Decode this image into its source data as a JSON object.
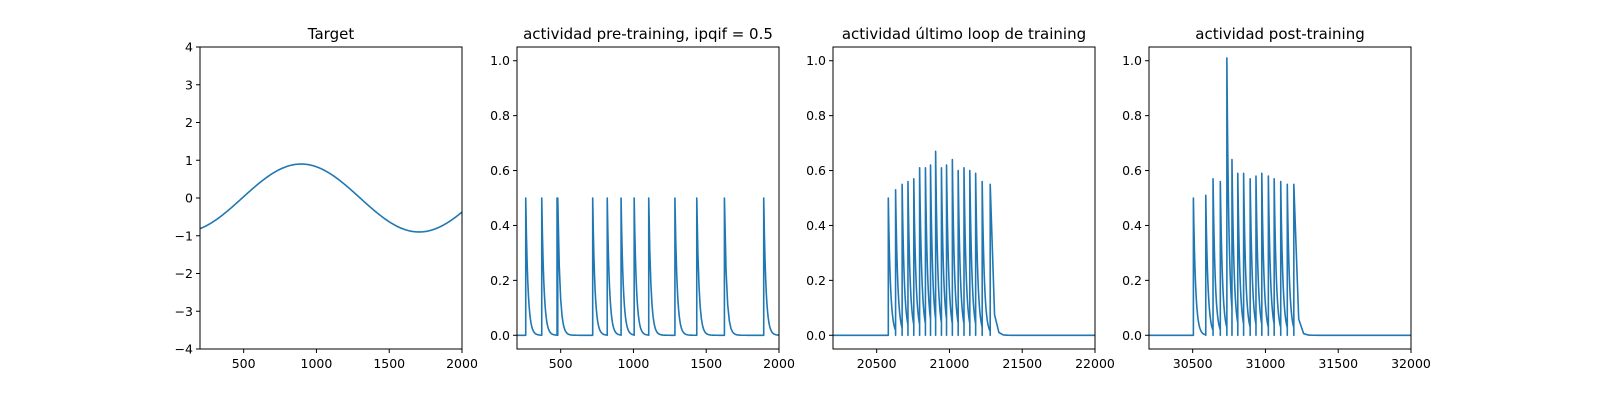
{
  "figure": {
    "background": "#ffffff",
    "line_color": "#1f77b4"
  },
  "chart_data": [
    {
      "type": "line",
      "title": "Target",
      "xlabel": "",
      "ylabel": "",
      "xlim": [
        200,
        2000
      ],
      "ylim": [
        -4,
        4
      ],
      "xticks": [
        500,
        1000,
        1500,
        2000
      ],
      "yticks": [
        -4,
        -3,
        -2,
        -1,
        0,
        1,
        2,
        3,
        4
      ],
      "grid": false,
      "function": {
        "kind": "sine",
        "amplitude": 0.9,
        "period": 1620,
        "peak_x": 895,
        "x_start": 200,
        "x_end": 2000
      }
    },
    {
      "type": "line",
      "title": "actividad pre-training, ipqif = 0.5",
      "xlabel": "",
      "ylabel": "",
      "xlim": [
        200,
        2000
      ],
      "ylim": [
        -0.05,
        1.05
      ],
      "xticks": [
        500,
        1000,
        1500,
        2000
      ],
      "yticks": [
        0.0,
        0.2,
        0.4,
        0.6,
        0.8,
        1.0
      ],
      "grid": false,
      "spikes": {
        "x_start": 200,
        "x_end": 2000,
        "baseline": 0.0,
        "decay_tau": 15,
        "events": [
          {
            "x": 260,
            "peak": 0.5
          },
          {
            "x": 370,
            "peak": 0.5
          },
          {
            "x": 475,
            "peak": 0.5
          },
          {
            "x": 480,
            "peak": 0.5
          },
          {
            "x": 720,
            "peak": 0.5
          },
          {
            "x": 820,
            "peak": 0.5
          },
          {
            "x": 915,
            "peak": 0.5
          },
          {
            "x": 1005,
            "peak": 0.5
          },
          {
            "x": 1105,
            "peak": 0.5
          },
          {
            "x": 1285,
            "peak": 0.5
          },
          {
            "x": 1435,
            "peak": 0.5
          },
          {
            "x": 1625,
            "peak": 0.5
          },
          {
            "x": 1895,
            "peak": 0.5
          }
        ]
      }
    },
    {
      "type": "line",
      "title": "actividad último loop de training",
      "xlabel": "",
      "ylabel": "",
      "xlim": [
        20200,
        22000
      ],
      "ylim": [
        -0.05,
        1.05
      ],
      "xticks": [
        20500,
        21000,
        21500,
        22000
      ],
      "yticks": [
        0.0,
        0.2,
        0.4,
        0.6,
        0.8,
        1.0
      ],
      "grid": false,
      "spikes": {
        "x_start": 20200,
        "x_end": 22000,
        "baseline": 0.0,
        "decay_tau": 15,
        "events": [
          {
            "x": 20580,
            "peak": 0.5
          },
          {
            "x": 20630,
            "peak": 0.53
          },
          {
            "x": 20675,
            "peak": 0.55
          },
          {
            "x": 20715,
            "peak": 0.56
          },
          {
            "x": 20755,
            "peak": 0.57
          },
          {
            "x": 20795,
            "peak": 0.61
          },
          {
            "x": 20835,
            "peak": 0.61
          },
          {
            "x": 20870,
            "peak": 0.62
          },
          {
            "x": 20905,
            "peak": 0.67
          },
          {
            "x": 20945,
            "peak": 0.61
          },
          {
            "x": 20980,
            "peak": 0.62
          },
          {
            "x": 21020,
            "peak": 0.64
          },
          {
            "x": 21060,
            "peak": 0.6
          },
          {
            "x": 21100,
            "peak": 0.61
          },
          {
            "x": 21140,
            "peak": 0.6
          },
          {
            "x": 21180,
            "peak": 0.59
          },
          {
            "x": 21225,
            "peak": 0.56
          },
          {
            "x": 21280,
            "peak": 0.55
          }
        ]
      }
    },
    {
      "type": "line",
      "title": "actividad post-training",
      "xlabel": "",
      "ylabel": "",
      "xlim": [
        30200,
        32000
      ],
      "ylim": [
        -0.05,
        1.05
      ],
      "xticks": [
        30500,
        31000,
        31500,
        32000
      ],
      "yticks": [
        0.0,
        0.2,
        0.4,
        0.6,
        0.8,
        1.0
      ],
      "grid": false,
      "spikes": {
        "x_start": 30200,
        "x_end": 32000,
        "baseline": 0.0,
        "decay_tau": 15,
        "events": [
          {
            "x": 30505,
            "peak": 0.5
          },
          {
            "x": 30590,
            "peak": 0.51
          },
          {
            "x": 30640,
            "peak": 0.57
          },
          {
            "x": 30690,
            "peak": 0.56
          },
          {
            "x": 30735,
            "peak": 1.01
          },
          {
            "x": 30770,
            "peak": 0.64
          },
          {
            "x": 30810,
            "peak": 0.59
          },
          {
            "x": 30850,
            "peak": 0.59
          },
          {
            "x": 30895,
            "peak": 0.57
          },
          {
            "x": 30935,
            "peak": 0.58
          },
          {
            "x": 30975,
            "peak": 0.59
          },
          {
            "x": 31020,
            "peak": 0.58
          },
          {
            "x": 31060,
            "peak": 0.57
          },
          {
            "x": 31105,
            "peak": 0.56
          },
          {
            "x": 31150,
            "peak": 0.55
          },
          {
            "x": 31195,
            "peak": 0.55
          }
        ]
      }
    }
  ]
}
